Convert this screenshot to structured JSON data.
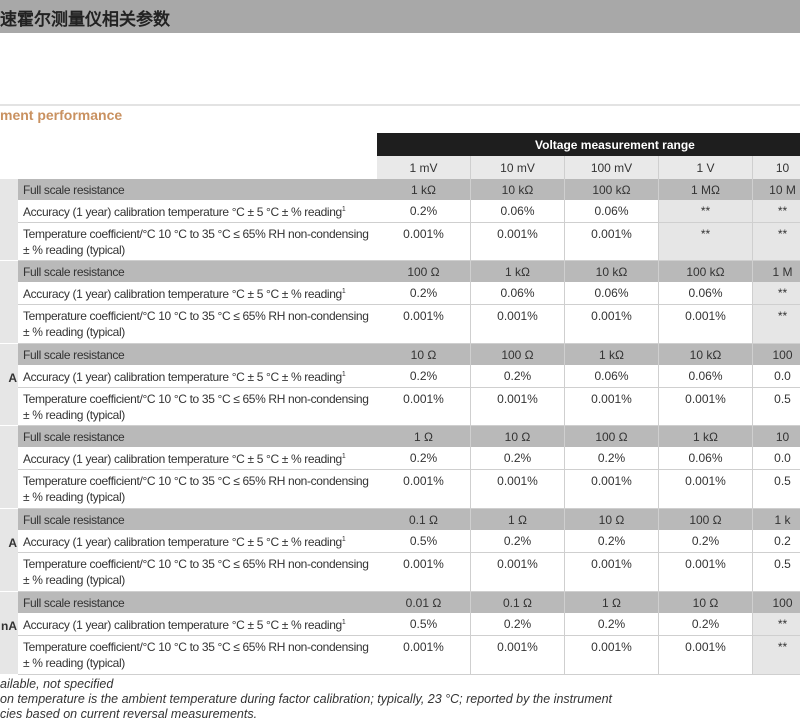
{
  "header": {
    "title": "速霍尔测量仪相关参数"
  },
  "section": {
    "heading": "ment performance"
  },
  "table": {
    "group_header": "Voltage measurement range",
    "columns": [
      "1 mV",
      "10 mV",
      "100 mV",
      "1 V",
      "10"
    ],
    "row_labels": {
      "full_scale": "Full scale resistance",
      "accuracy": "Accuracy (1 year) calibration temperature °C ± 5 °C ± % reading",
      "accuracy_sup": "1",
      "tempco_line1": "Temperature coefficient/°C 10 °C to 35 °C ≤ 65% RH non-condensing",
      "tempco_line2": "± % reading (typical)"
    },
    "groups": [
      {
        "side_label": "",
        "full_scale": [
          "1 kΩ",
          "10 kΩ",
          "100 kΩ",
          "1 MΩ",
          "10 M"
        ],
        "accuracy": [
          "0.2%",
          "0.06%",
          "0.06%",
          "**",
          "**"
        ],
        "tempco": [
          "0.001%",
          "0.001%",
          "0.001%",
          "**",
          "**"
        ],
        "grey_from": 3
      },
      {
        "side_label": "",
        "full_scale": [
          "100 Ω",
          "1 kΩ",
          "10 kΩ",
          "100 kΩ",
          "1 M"
        ],
        "accuracy": [
          "0.2%",
          "0.06%",
          "0.06%",
          "0.06%",
          "**"
        ],
        "tempco": [
          "0.001%",
          "0.001%",
          "0.001%",
          "0.001%",
          "**"
        ],
        "grey_from": 4
      },
      {
        "side_label": "A",
        "full_scale": [
          "10 Ω",
          "100 Ω",
          "1 kΩ",
          "10 kΩ",
          "100"
        ],
        "accuracy": [
          "0.2%",
          "0.2%",
          "0.06%",
          "0.06%",
          "0.0"
        ],
        "tempco": [
          "0.001%",
          "0.001%",
          "0.001%",
          "0.001%",
          "0.5"
        ],
        "grey_from": 5
      },
      {
        "side_label": "",
        "full_scale": [
          "1 Ω",
          "10 Ω",
          "100 Ω",
          "1 kΩ",
          "10"
        ],
        "accuracy": [
          "0.2%",
          "0.2%",
          "0.2%",
          "0.06%",
          "0.0"
        ],
        "tempco": [
          "0.001%",
          "0.001%",
          "0.001%",
          "0.001%",
          "0.5"
        ],
        "grey_from": 5
      },
      {
        "side_label": "A",
        "full_scale": [
          "0.1 Ω",
          "1 Ω",
          "10 Ω",
          "100 Ω",
          "1 k"
        ],
        "accuracy": [
          "0.5%",
          "0.2%",
          "0.2%",
          "0.2%",
          "0.2"
        ],
        "tempco": [
          "0.001%",
          "0.001%",
          "0.001%",
          "0.001%",
          "0.5"
        ],
        "grey_from": 5
      },
      {
        "side_label": "nA",
        "full_scale": [
          "0.01 Ω",
          "0.1 Ω",
          "1 Ω",
          "10 Ω",
          "100"
        ],
        "accuracy": [
          "0.5%",
          "0.2%",
          "0.2%",
          "0.2%",
          "**"
        ],
        "tempco": [
          "0.001%",
          "0.001%",
          "0.001%",
          "0.001%",
          "**"
        ],
        "grey_from": 4
      }
    ]
  },
  "footnotes": [
    "ailable, not specified",
    "on temperature is the ambient temperature during factor calibration; typically, 23 °C; reported by the instrument",
    "cies based on current reversal measurements."
  ],
  "colors": {
    "title_bar": "#a8a8a8",
    "heading": "#c99160",
    "header_bar": "#1e1e1e",
    "row_band": "#b9b9b9"
  }
}
